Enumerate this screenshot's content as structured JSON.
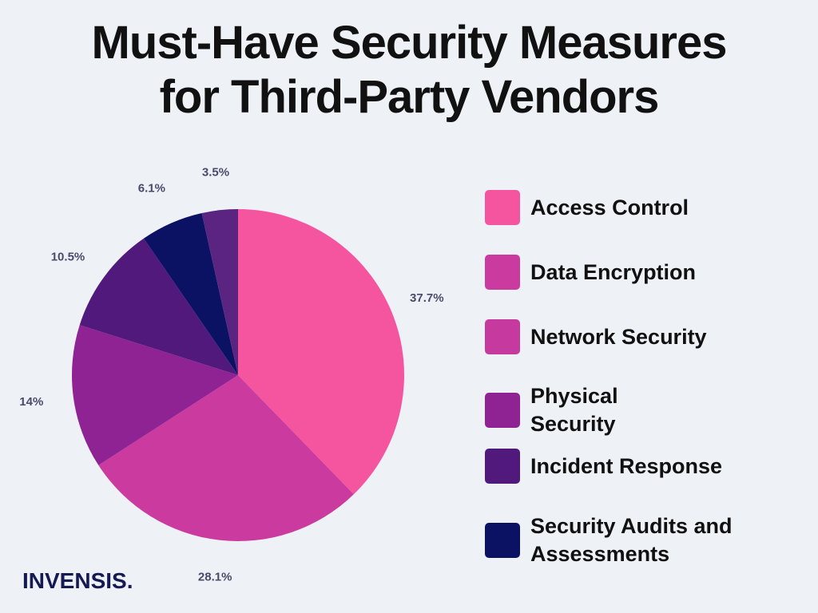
{
  "title_line1": "Must-Have Security Measures",
  "title_line2": "for Third-Party Vendors",
  "brand": "INVENSIS.",
  "chart_data": {
    "type": "pie",
    "title": "Must-Have Security Measures for Third-Party Vendors",
    "slices": [
      {
        "label": "Access Control",
        "value": 37.7,
        "display": "37.7%",
        "color": "#f5559f"
      },
      {
        "label": "Data Encryption",
        "value": 28.1,
        "display": "28.1%",
        "color": "#cb3a9f"
      },
      {
        "label": "Network Security",
        "value": 0,
        "display": "",
        "color": "#c6399e"
      },
      {
        "label": "Physical Security",
        "value": 14,
        "display": "14%",
        "color": "#8f2394"
      },
      {
        "label": "Incident Response",
        "value": 10.5,
        "display": "10.5%",
        "color": "#52197c"
      },
      {
        "label": "Security Audits and Assessments",
        "value": 6.1,
        "display": "6.1%",
        "color": "#0c1263"
      },
      {
        "label": "",
        "value": 3.5,
        "display": "3.5%",
        "color": "#5a2480"
      }
    ],
    "legend": [
      {
        "label_lines": [
          "Access Control"
        ],
        "color": "#f5559f"
      },
      {
        "label_lines": [
          "Data Encryption"
        ],
        "color": "#cb3a9f"
      },
      {
        "label_lines": [
          "Network Security"
        ],
        "color": "#c6399e"
      },
      {
        "label_lines": [
          "Physical",
          "Security"
        ],
        "color": "#8f2394"
      },
      {
        "label_lines": [
          "Incident Response"
        ],
        "color": "#52197c"
      },
      {
        "label_lines": [
          "Security Audits and",
          "Assessments"
        ],
        "color": "#0c1263"
      }
    ],
    "legend_placement": "right",
    "grid": false
  }
}
